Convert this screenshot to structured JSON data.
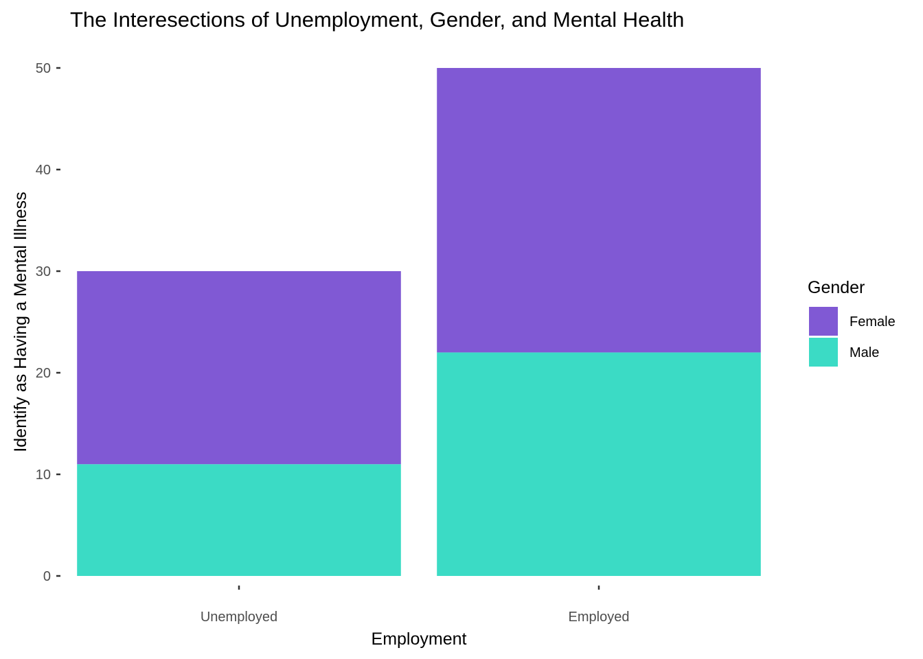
{
  "chart_data": {
    "type": "bar",
    "stacked": true,
    "title": "The Interesections of Unemployment, Gender, and Mental Health",
    "xlabel": "Employment",
    "ylabel": "Identify as Having a Mental Illness",
    "categories": [
      "Unemployed",
      "Employed"
    ],
    "series": [
      {
        "name": "Male",
        "values": [
          11,
          22
        ],
        "color": "#3BDBC5"
      },
      {
        "name": "Female",
        "values": [
          19,
          28
        ],
        "color": "#8059D4"
      }
    ],
    "ylim": [
      0,
      50
    ],
    "yticks": [
      0,
      10,
      20,
      30,
      40,
      50
    ],
    "grid": false,
    "legend": {
      "title": "Gender",
      "placement": "right",
      "entries": [
        {
          "label": "Female",
          "color": "#8059D4"
        },
        {
          "label": "Male",
          "color": "#3BDBC5"
        }
      ]
    }
  }
}
